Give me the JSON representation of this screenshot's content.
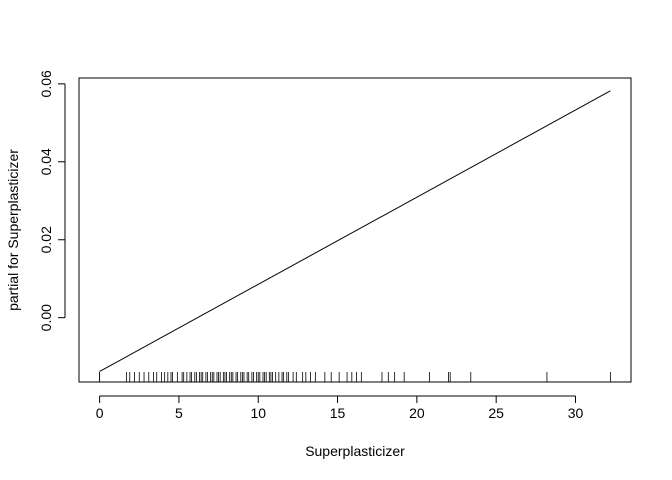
{
  "chart_data": {
    "type": "line",
    "title": "",
    "xlabel": "Superplasticizer",
    "ylabel": "partial for Superplasticizer",
    "xlim": [
      -1.3,
      33.5
    ],
    "ylim": [
      -0.0165,
      0.0615
    ],
    "xticks": [
      0,
      5,
      10,
      15,
      20,
      25,
      30
    ],
    "xtick_labels": [
      "0",
      "5",
      "10",
      "15",
      "20",
      "25",
      "30"
    ],
    "yticks": [
      0.0,
      0.02,
      0.04,
      0.06
    ],
    "ytick_labels": [
      "0.00",
      "0.02",
      "0.04",
      "0.06"
    ],
    "grid": false,
    "legend": "none",
    "series": [
      {
        "x": [
          0,
          32.2
        ],
        "y": [
          -0.0138,
          0.0582
        ]
      }
    ],
    "rug": [
      0,
      0,
      1.7,
      1.9,
      2.2,
      2.5,
      2.8,
      3.1,
      3.4,
      3.6,
      3.9,
      4.1,
      4.3,
      4.5,
      4.6,
      4.9,
      5.2,
      5.3,
      5.5,
      5.7,
      5.8,
      6.0,
      6.1,
      6.3,
      6.4,
      6.5,
      6.7,
      6.8,
      7.0,
      7.1,
      7.2,
      7.4,
      7.5,
      7.6,
      7.8,
      7.9,
      8.0,
      8.2,
      8.3,
      8.4,
      8.6,
      8.7,
      8.9,
      9.0,
      9.1,
      9.3,
      9.4,
      9.6,
      9.7,
      9.9,
      10.0,
      10.1,
      10.3,
      10.4,
      10.5,
      10.7,
      10.8,
      10.9,
      11.1,
      11.3,
      11.5,
      11.6,
      11.8,
      11.9,
      12.2,
      12.4,
      12.8,
      13.0,
      13.3,
      13.6,
      14.2,
      14.6,
      15.1,
      15.6,
      15.9,
      16.2,
      16.5,
      17.8,
      18.2,
      18.6,
      19.2,
      20.8,
      22.0,
      22.1,
      23.4,
      28.2,
      32.2
    ],
    "line_color": "#000000"
  }
}
